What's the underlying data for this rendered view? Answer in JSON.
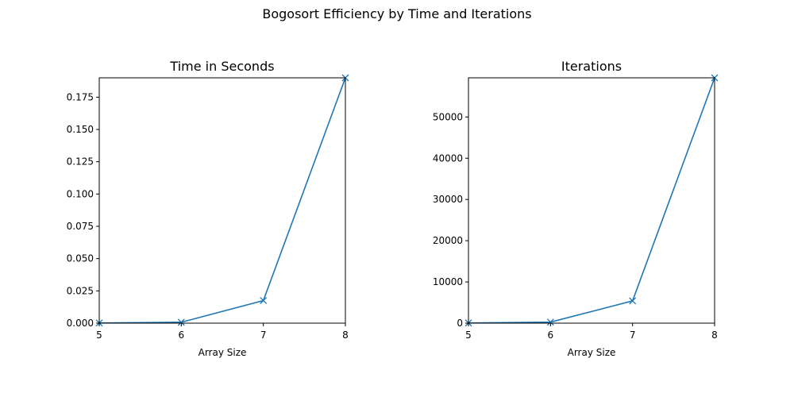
{
  "figure": {
    "suptitle": "Bogosort Efficiency by Time and Iterations"
  },
  "chart_data": [
    {
      "type": "line",
      "title": "Time in Seconds",
      "xlabel": "Array Size",
      "ylabel": "",
      "x": [
        5,
        6,
        7,
        8
      ],
      "series": [
        {
          "values": [
            0.0001,
            0.0007,
            0.0175,
            0.19
          ]
        }
      ],
      "xlim": [
        5,
        8
      ],
      "ylim": [
        0,
        0.19
      ],
      "xticks": [
        "5",
        "6",
        "7",
        "8"
      ],
      "yticks": [
        "0.000",
        "0.025",
        "0.050",
        "0.075",
        "0.100",
        "0.125",
        "0.150",
        "0.175"
      ],
      "ytick_values": [
        0,
        0.025,
        0.05,
        0.075,
        0.1,
        0.125,
        0.15,
        0.175
      ],
      "marker": "x",
      "color": "#1f77b4",
      "grid": false
    },
    {
      "type": "line",
      "title": "Iterations",
      "xlabel": "Array Size",
      "ylabel": "",
      "x": [
        5,
        6,
        7,
        8
      ],
      "series": [
        {
          "values": [
            50,
            250,
            5400,
            59500
          ]
        }
      ],
      "xlim": [
        5,
        8
      ],
      "ylim": [
        0,
        59500
      ],
      "xticks": [
        "5",
        "6",
        "7",
        "8"
      ],
      "yticks": [
        "0",
        "10000",
        "20000",
        "30000",
        "40000",
        "50000"
      ],
      "ytick_values": [
        0,
        10000,
        20000,
        30000,
        40000,
        50000
      ],
      "marker": "x",
      "color": "#1f77b4",
      "grid": false
    }
  ]
}
